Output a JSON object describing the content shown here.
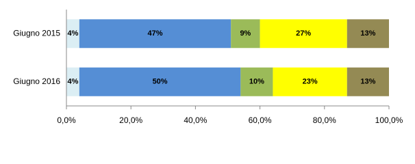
{
  "chart_data": {
    "type": "stacked-bar-horizontal",
    "categories": [
      "Giugno 2015",
      "Giugno 2016"
    ],
    "series": [
      {
        "color": "#dbeef4",
        "values": [
          4,
          4
        ],
        "value_labels": [
          "4%",
          "4%"
        ]
      },
      {
        "color": "#558ed5",
        "values": [
          47,
          50
        ],
        "value_labels": [
          "47%",
          "50%"
        ]
      },
      {
        "color": "#9bbb59",
        "values": [
          9,
          10
        ],
        "value_labels": [
          "9%",
          "10%"
        ]
      },
      {
        "color": "#ffff00",
        "values": [
          27,
          23
        ],
        "value_labels": [
          "27%",
          "23%"
        ]
      },
      {
        "color": "#948a54",
        "values": [
          13,
          13
        ],
        "value_labels": [
          "13%",
          "13%"
        ]
      }
    ],
    "xlim": [
      0,
      100
    ],
    "xticks": [
      {
        "value": 0,
        "label": "0,0%"
      },
      {
        "value": 20,
        "label": "20,0%"
      },
      {
        "value": 40,
        "label": "40,0%"
      },
      {
        "value": 60,
        "label": "60,0%"
      },
      {
        "value": 80,
        "label": "80,0%"
      },
      {
        "value": 100,
        "label": "100,0%"
      }
    ]
  }
}
